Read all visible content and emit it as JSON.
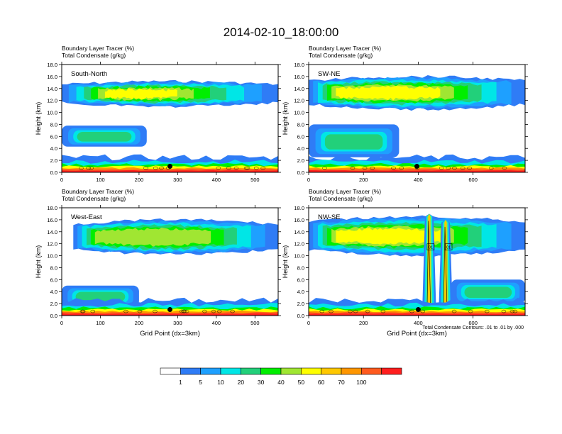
{
  "figure": {
    "title": "2014-02-10_18:00:00",
    "subtitle_tracer": "Boundary Layer Tracer   (%)",
    "subtitle_condensate": "Total Condensate   (g/kg)",
    "contour_note": "Total Condensate Contours: .01 to .01 by .000"
  },
  "colorbar": {
    "labels": [
      "1",
      "5",
      "10",
      "20",
      "30",
      "40",
      "50",
      "60",
      "70",
      "100"
    ],
    "colors": [
      "#ffffff",
      "#2f7cf6",
      "#1ea0ff",
      "#00e6e6",
      "#22d07a",
      "#00ee00",
      "#a0e632",
      "#ffff00",
      "#ffc800",
      "#ff9600",
      "#ff5a1e",
      "#ff1e1e"
    ]
  },
  "chart_data": [
    {
      "type": "heatmap",
      "panel_label": "South-North",
      "ylabel": "Height (km)",
      "xlabel": "",
      "xlim": [
        0,
        560
      ],
      "ylim": [
        0,
        18
      ],
      "xticks": [
        0,
        100,
        200,
        300,
        400,
        500
      ],
      "xtick_labels": [
        "0",
        "100",
        "200",
        "300",
        "400",
        "500"
      ],
      "yticks": [
        0,
        2,
        4,
        6,
        8,
        10,
        12,
        14,
        16,
        18
      ],
      "ytick_labels": [
        "0.0",
        "2.0",
        "4.0",
        "6.0",
        "8.0",
        "10.0",
        "12.0",
        "14.0",
        "16.0",
        "18.0"
      ],
      "marker": {
        "x": 280,
        "y": 1.0
      },
      "upper_layer": {
        "x_start": 0,
        "x_end": 560,
        "z_base": 11.0,
        "z_top": 15.2
      },
      "lower_layer": {
        "x_start": 0,
        "x_end": 220,
        "z_base": 4.3,
        "z_top": 7.8
      }
    },
    {
      "type": "heatmap",
      "panel_label": "SW-NE",
      "ylabel": "Height (km)",
      "xlabel": "",
      "xlim": [
        0,
        790
      ],
      "ylim": [
        0,
        18
      ],
      "xticks": [
        0,
        200,
        400,
        600
      ],
      "xtick_labels": [
        "0",
        "200",
        "400",
        "600"
      ],
      "yticks": [
        0,
        2,
        4,
        6,
        8,
        10,
        12,
        14,
        16,
        18
      ],
      "ytick_labels": [
        "0.0",
        "2.0",
        "4.0",
        "6.0",
        "8.0",
        "10.0",
        "12.0",
        "14.0",
        "16.0",
        "18.0"
      ],
      "marker": {
        "x": 395,
        "y": 1.0
      },
      "upper_layer": {
        "x_start": 0,
        "x_end": 790,
        "z_base": 10.5,
        "z_top": 16.0
      },
      "lower_layer": {
        "x_start": 0,
        "x_end": 330,
        "z_base": 2.5,
        "z_top": 8.0
      }
    },
    {
      "type": "heatmap",
      "panel_label": "West-East",
      "ylabel": "Height (km)",
      "xlabel": "Grid Point (dx=3km)",
      "xlim": [
        0,
        560
      ],
      "ylim": [
        0,
        18
      ],
      "xticks": [
        0,
        100,
        200,
        300,
        400,
        500
      ],
      "xtick_labels": [
        "0",
        "100",
        "200",
        "300",
        "400",
        "500"
      ],
      "yticks": [
        0,
        2,
        4,
        6,
        8,
        10,
        12,
        14,
        16,
        18
      ],
      "ytick_labels": [
        "0.0",
        "2.0",
        "4.0",
        "6.0",
        "8.0",
        "10.0",
        "12.0",
        "14.0",
        "16.0",
        "18.0"
      ],
      "marker": {
        "x": 280,
        "y": 1.0
      },
      "upper_layer": {
        "x_start": 30,
        "x_end": 560,
        "z_base": 10.2,
        "z_top": 16.0
      },
      "lower_layer": {
        "x_start": 0,
        "x_end": 200,
        "z_base": 1.5,
        "z_top": 5.0
      }
    },
    {
      "type": "heatmap",
      "panel_label": "NW-SE",
      "ylabel": "Height (km)",
      "xlabel": "Grid Point (dx=3km)",
      "xlim": [
        0,
        790
      ],
      "ylim": [
        0,
        18
      ],
      "xticks": [
        0,
        200,
        400,
        600
      ],
      "xtick_labels": [
        "0",
        "200",
        "400",
        "600"
      ],
      "yticks": [
        0,
        2,
        4,
        6,
        8,
        10,
        12,
        14,
        16,
        18
      ],
      "ytick_labels": [
        "0.0",
        "2.0",
        "4.0",
        "6.0",
        "8.0",
        "10.0",
        "12.0",
        "14.0",
        "16.0",
        "18.0"
      ],
      "marker": {
        "x": 400,
        "y": 1.0
      },
      "upper_layer": {
        "x_start": 0,
        "x_end": 790,
        "z_base": 10.0,
        "z_top": 16.5
      },
      "lower_layer": {
        "x_start": 520,
        "x_end": 790,
        "z_base": 2.0,
        "z_top": 6.0
      },
      "towers": [
        {
          "x": 440,
          "z_top": 17.0
        },
        {
          "x": 500,
          "z_top": 16.0
        }
      ],
      "contour_box_labels": [
        "01",
        "01"
      ]
    }
  ]
}
